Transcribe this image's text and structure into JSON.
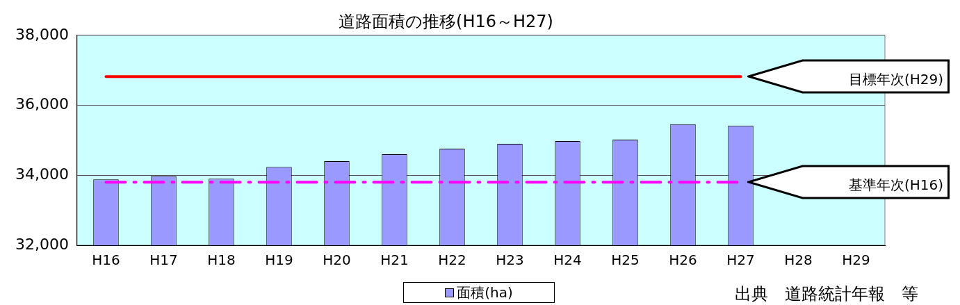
{
  "chart_data": {
    "type": "bar",
    "title": "道路面積の推移(H16～H27)",
    "categories": [
      "H16",
      "H17",
      "H18",
      "H19",
      "H20",
      "H21",
      "H22",
      "H23",
      "H24",
      "H25",
      "H26",
      "H27",
      "H28",
      "H29"
    ],
    "series": [
      {
        "name": "面積(ha)",
        "color": "#9999ff",
        "values": [
          33880,
          33980,
          33900,
          34240,
          34400,
          34600,
          34760,
          34900,
          34980,
          35020,
          35460,
          35420,
          null,
          null
        ]
      },
      {
        "type": "line",
        "color": "#ff0000",
        "line_style": "solid",
        "values": [
          36820,
          36820,
          36820,
          36820,
          36820,
          36820,
          36820,
          36820,
          36820,
          36820,
          36820,
          36820,
          null,
          null
        ]
      },
      {
        "type": "line",
        "color": "#ff00ff",
        "line_style": "dashed",
        "values": [
          33800,
          33800,
          33800,
          33800,
          33800,
          33800,
          33800,
          33800,
          33800,
          33800,
          33800,
          33800,
          null,
          null
        ]
      }
    ],
    "ylim": [
      32000,
      38000
    ],
    "yticks": [
      {
        "value": 32000,
        "label": "32,000"
      },
      {
        "value": 34000,
        "label": "34,000"
      },
      {
        "value": 36000,
        "label": "36,000"
      },
      {
        "value": 38000,
        "label": "38,000"
      }
    ],
    "grid": "y",
    "legend": "bottom",
    "marker": "none",
    "annotations": [
      "目標年次(H29)",
      "基準年次(H16)",
      "出典　道路統計年報　等"
    ]
  }
}
